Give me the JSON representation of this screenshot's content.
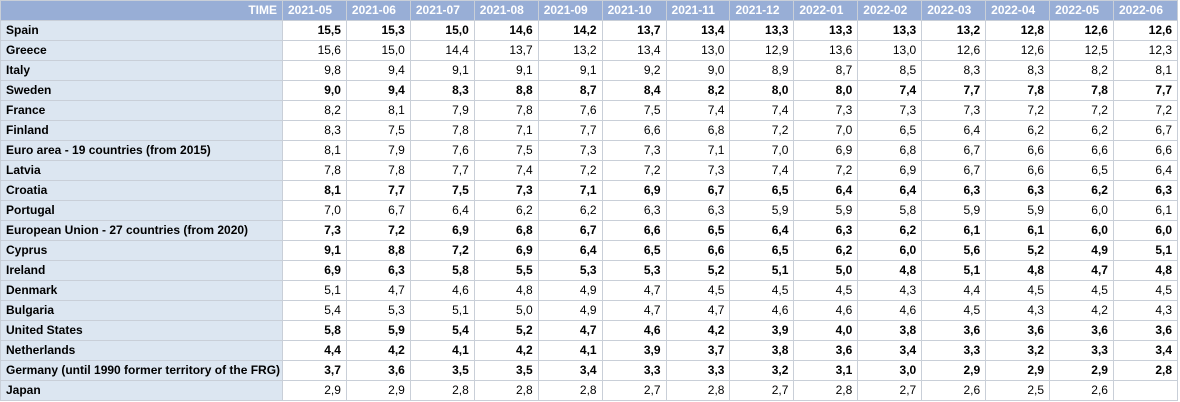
{
  "header": {
    "corner_label": "TIME",
    "periods": [
      "2021-05",
      "2021-06",
      "2021-07",
      "2021-08",
      "2021-09",
      "2021-10",
      "2021-11",
      "2021-12",
      "2022-01",
      "2022-02",
      "2022-03",
      "2022-04",
      "2022-05",
      "2022-06"
    ]
  },
  "rows": [
    {
      "geo": "Spain",
      "bold": true,
      "values": [
        "15,5",
        "15,3",
        "15,0",
        "14,6",
        "14,2",
        "13,7",
        "13,4",
        "13,3",
        "13,3",
        "13,3",
        "13,2",
        "12,8",
        "12,6",
        "12,6"
      ]
    },
    {
      "geo": "Greece",
      "bold": false,
      "values": [
        "15,6",
        "15,0",
        "14,4",
        "13,7",
        "13,2",
        "13,4",
        "13,0",
        "12,9",
        "13,6",
        "13,0",
        "12,6",
        "12,6",
        "12,5",
        "12,3"
      ]
    },
    {
      "geo": "Italy",
      "bold": false,
      "values": [
        "9,8",
        "9,4",
        "9,1",
        "9,1",
        "9,1",
        "9,2",
        "9,0",
        "8,9",
        "8,7",
        "8,5",
        "8,3",
        "8,3",
        "8,2",
        "8,1"
      ]
    },
    {
      "geo": "Sweden",
      "bold": true,
      "values": [
        "9,0",
        "9,4",
        "8,3",
        "8,8",
        "8,7",
        "8,4",
        "8,2",
        "8,0",
        "8,0",
        "7,4",
        "7,7",
        "7,8",
        "7,8",
        "7,7"
      ]
    },
    {
      "geo": "France",
      "bold": false,
      "values": [
        "8,2",
        "8,1",
        "7,9",
        "7,8",
        "7,6",
        "7,5",
        "7,4",
        "7,4",
        "7,3",
        "7,3",
        "7,3",
        "7,2",
        "7,2",
        "7,2"
      ]
    },
    {
      "geo": "Finland",
      "bold": false,
      "values": [
        "8,3",
        "7,5",
        "7,8",
        "7,1",
        "7,7",
        "6,6",
        "6,8",
        "7,2",
        "7,0",
        "6,5",
        "6,4",
        "6,2",
        "6,2",
        "6,7"
      ]
    },
    {
      "geo": "Euro area - 19 countries  (from 2015)",
      "bold": false,
      "values": [
        "8,1",
        "7,9",
        "7,6",
        "7,5",
        "7,3",
        "7,3",
        "7,1",
        "7,0",
        "6,9",
        "6,8",
        "6,7",
        "6,6",
        "6,6",
        "6,6"
      ]
    },
    {
      "geo": "Latvia",
      "bold": false,
      "values": [
        "7,8",
        "7,8",
        "7,7",
        "7,4",
        "7,2",
        "7,2",
        "7,3",
        "7,4",
        "7,2",
        "6,9",
        "6,7",
        "6,6",
        "6,5",
        "6,4"
      ]
    },
    {
      "geo": "Croatia",
      "bold": true,
      "values": [
        "8,1",
        "7,7",
        "7,5",
        "7,3",
        "7,1",
        "6,9",
        "6,7",
        "6,5",
        "6,4",
        "6,4",
        "6,3",
        "6,3",
        "6,2",
        "6,3"
      ]
    },
    {
      "geo": "Portugal",
      "bold": false,
      "values": [
        "7,0",
        "6,7",
        "6,4",
        "6,2",
        "6,2",
        "6,3",
        "6,3",
        "5,9",
        "5,9",
        "5,8",
        "5,9",
        "5,9",
        "6,0",
        "6,1"
      ]
    },
    {
      "geo": "European Union - 27 countries (from 2020)",
      "bold": true,
      "values": [
        "7,3",
        "7,2",
        "6,9",
        "6,8",
        "6,7",
        "6,6",
        "6,5",
        "6,4",
        "6,3",
        "6,2",
        "6,1",
        "6,1",
        "6,0",
        "6,0"
      ]
    },
    {
      "geo": "Cyprus",
      "bold": true,
      "values": [
        "9,1",
        "8,8",
        "7,2",
        "6,9",
        "6,4",
        "6,5",
        "6,6",
        "6,5",
        "6,2",
        "6,0",
        "5,6",
        "5,2",
        "4,9",
        "5,1"
      ]
    },
    {
      "geo": "Ireland",
      "bold": true,
      "values": [
        "6,9",
        "6,3",
        "5,8",
        "5,5",
        "5,3",
        "5,3",
        "5,2",
        "5,1",
        "5,0",
        "4,8",
        "5,1",
        "4,8",
        "4,7",
        "4,8"
      ]
    },
    {
      "geo": "Denmark",
      "bold": false,
      "values": [
        "5,1",
        "4,7",
        "4,6",
        "4,8",
        "4,9",
        "4,7",
        "4,5",
        "4,5",
        "4,5",
        "4,3",
        "4,4",
        "4,5",
        "4,5",
        "4,5"
      ]
    },
    {
      "geo": "Bulgaria",
      "bold": false,
      "values": [
        "5,4",
        "5,3",
        "5,1",
        "5,0",
        "4,9",
        "4,7",
        "4,7",
        "4,6",
        "4,6",
        "4,6",
        "4,5",
        "4,3",
        "4,2",
        "4,3"
      ]
    },
    {
      "geo": "United States",
      "bold": true,
      "values": [
        "5,8",
        "5,9",
        "5,4",
        "5,2",
        "4,7",
        "4,6",
        "4,2",
        "3,9",
        "4,0",
        "3,8",
        "3,6",
        "3,6",
        "3,6",
        "3,6"
      ]
    },
    {
      "geo": "Netherlands",
      "bold": true,
      "values": [
        "4,4",
        "4,2",
        "4,1",
        "4,2",
        "4,1",
        "3,9",
        "3,7",
        "3,8",
        "3,6",
        "3,4",
        "3,3",
        "3,2",
        "3,3",
        "3,4"
      ]
    },
    {
      "geo": "Germany (until 1990 former territory of the FRG)",
      "bold": true,
      "values": [
        "3,7",
        "3,6",
        "3,5",
        "3,5",
        "3,4",
        "3,3",
        "3,3",
        "3,2",
        "3,1",
        "3,0",
        "2,9",
        "2,9",
        "2,9",
        "2,8"
      ]
    },
    {
      "geo": "Japan",
      "bold": false,
      "values": [
        "2,9",
        "2,9",
        "2,8",
        "2,8",
        "2,8",
        "2,7",
        "2,8",
        "2,7",
        "2,8",
        "2,7",
        "2,6",
        "2,5",
        "2,6",
        ""
      ]
    }
  ]
}
